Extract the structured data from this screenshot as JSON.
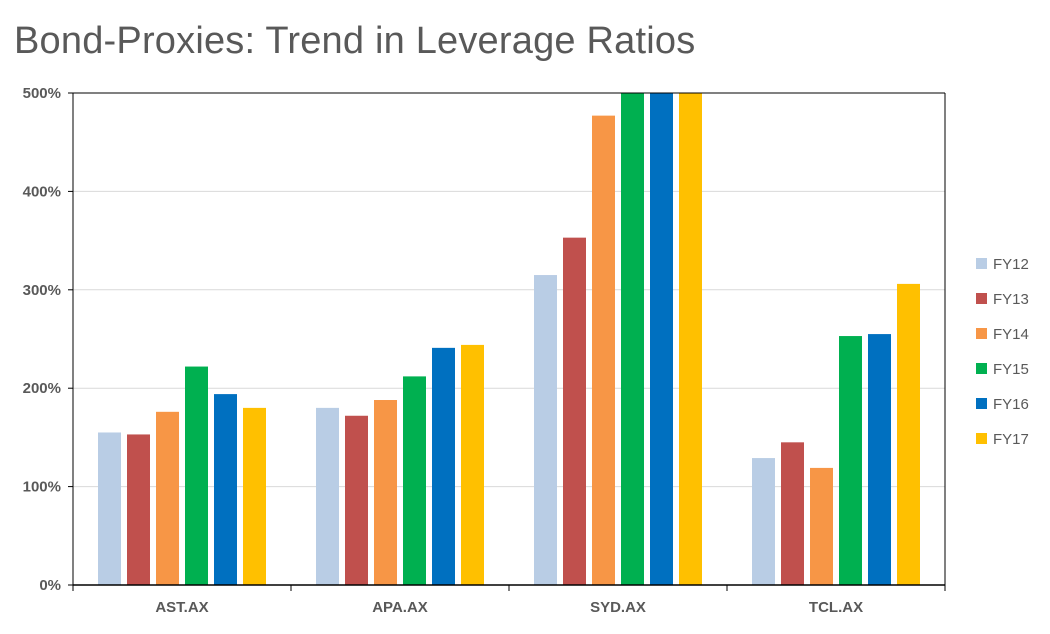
{
  "chart_data": {
    "type": "bar",
    "title": "Bond-Proxies: Trend in Leverage Ratios",
    "categories": [
      "AST.AX",
      "APA.AX",
      "SYD.AX",
      "TCL.AX"
    ],
    "series": [
      {
        "name": "FY12",
        "color": "#B9CDE5",
        "values": [
          155,
          180,
          315,
          129
        ]
      },
      {
        "name": "FY13",
        "color": "#C0504D",
        "values": [
          153,
          172,
          353,
          145
        ]
      },
      {
        "name": "FY14",
        "color": "#F79646",
        "values": [
          176,
          188,
          477,
          119
        ]
      },
      {
        "name": "FY15",
        "color": "#00B050",
        "values": [
          222,
          212,
          500,
          253
        ]
      },
      {
        "name": "FY16",
        "color": "#0070C0",
        "values": [
          194,
          241,
          500,
          255
        ]
      },
      {
        "name": "FY17",
        "color": "#FFC000",
        "values": [
          180,
          244,
          500,
          306
        ]
      }
    ],
    "y_ticks": [
      "0%",
      "100%",
      "200%",
      "300%",
      "400%",
      "500%"
    ],
    "ylim": [
      0,
      500
    ],
    "legend_position": "right",
    "grid": true
  }
}
